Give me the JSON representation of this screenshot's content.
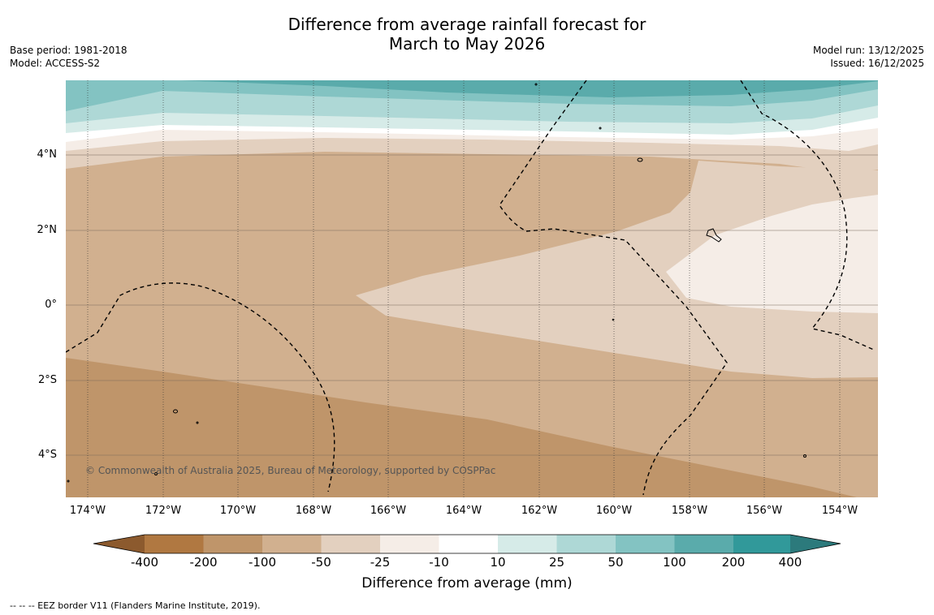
{
  "title": {
    "line1": "Difference from average rainfall forecast for",
    "line2": "March to May 2026"
  },
  "meta_left": {
    "base_period": "Base period: 1981-2018",
    "model": "Model: ACCESS-S2"
  },
  "meta_right": {
    "model_run": "Model run: 13/12/2025",
    "issued": "Issued: 16/12/2025"
  },
  "map": {
    "lat_labels": [
      "4°N",
      "2°N",
      "0°",
      "2°S",
      "4°S"
    ],
    "lon_labels": [
      "174°W",
      "172°W",
      "170°W",
      "168°W",
      "166°W",
      "164°W",
      "162°W",
      "160°W",
      "158°W",
      "156°W",
      "154°W"
    ],
    "copyright": "© Commonwealth of Australia 2025, Bureau of Meteorology, supported by COSPPac",
    "contour_colors": {
      "c_m200_m100": "#bf956a",
      "c_m100_m50": "#d1b08f",
      "c_m50_m25": "#e3d0bf",
      "c_m25_m10": "#f5ede7",
      "c_m10_10": "#ffffff",
      "c_10_25": "#d6ebe8",
      "c_25_50": "#aed8d6",
      "c_50_100": "#83c3c2",
      "c_100_200": "#5aabab"
    }
  },
  "colorbar": {
    "title": "Difference from average (mm)",
    "ticks": [
      "-400",
      "-200",
      "-100",
      "-50",
      "-25",
      "-10",
      "10",
      "25",
      "50",
      "100",
      "200",
      "400"
    ],
    "colors": [
      "#8c5a2e",
      "#b07841",
      "#bf956a",
      "#d1b08f",
      "#e3d0bf",
      "#f5ede7",
      "#ffffff",
      "#d6ebe8",
      "#aed8d6",
      "#83c3c2",
      "#5aabab",
      "#31999a",
      "#2c7a7c"
    ]
  },
  "footnote": "--  --  -- EEZ border V11 (Flanders Marine Institute, 2019)."
}
